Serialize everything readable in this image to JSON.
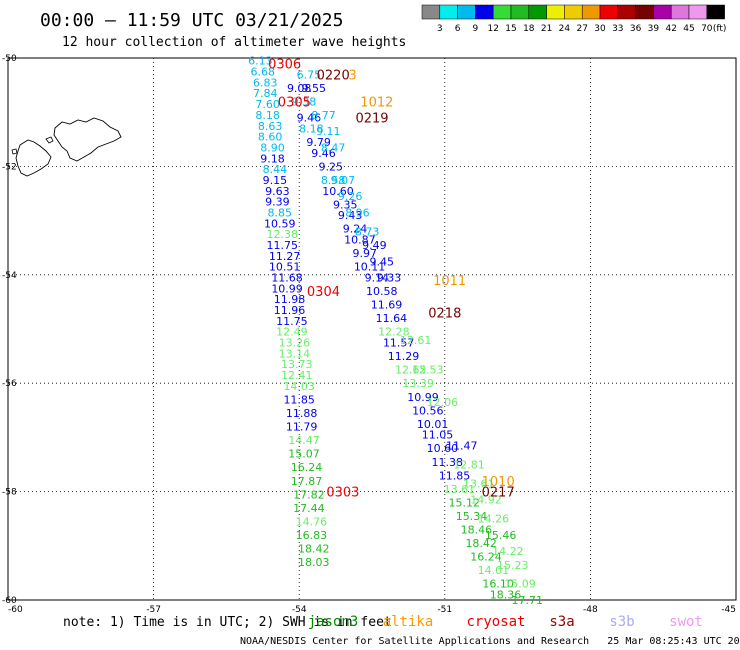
{
  "title": "00:00 – 11:59 UTC 03/21/2025",
  "subtitle": "12 hour collection of altimeter wave heights",
  "footer": "NOAA/NESDIS Center for Satellite Applications and Research   25 Mar 08:25:43 UTC 2025",
  "note": "note: 1) Time is in UTC; 2) SWH is in feet",
  "legend": {
    "labels": [
      "3",
      "6",
      "9",
      "12",
      "15",
      "18",
      "21",
      "24",
      "27",
      "30",
      "33",
      "36",
      "39",
      "42",
      "45",
      "70",
      "(ft)"
    ],
    "colors": [
      "#888888",
      "#00eeee",
      "#00bbee",
      "#0000ee",
      "#33dd33",
      "#22bb22",
      "#009900",
      "#eeee00",
      "#eecc00",
      "#ee9900",
      "#ee0000",
      "#aa0000",
      "#770000",
      "#aa00aa",
      "#dd77dd",
      "#ee99ee",
      "#000000"
    ]
  },
  "satellites": [
    {
      "name": "jason3",
      "label": "jason3",
      "color": "#008800"
    },
    {
      "name": "altika",
      "label": "altika",
      "color": "#ff9900"
    },
    {
      "name": "cryosat",
      "label": "cryosat",
      "color": "#ee0000"
    },
    {
      "name": "s3a",
      "label": "s3a",
      "color": "#990000"
    },
    {
      "name": "s3b",
      "label": "s3b",
      "color": "#aaaaee"
    },
    {
      "name": "swot",
      "label": "swot",
      "color": "#ee99ee"
    }
  ],
  "chart_data": {
    "type": "scatter",
    "title": "00:00 – 11:59 UTC 03/21/2025",
    "subtitle": "12 hour collection of altimeter wave heights",
    "xlim": [
      -60,
      -45
    ],
    "ylim": [
      -60,
      -50
    ],
    "x_ticks": [
      "-60",
      "-57",
      "-54",
      "-51",
      "-48",
      "-45"
    ],
    "y_ticks": [
      "-50",
      "-52",
      "-54",
      "-56",
      "-58",
      "-60"
    ],
    "grid": true,
    "pass_times": [
      {
        "label": "0306",
        "lon": -54.3,
        "lat": -50.1,
        "color": "#ee0000"
      },
      {
        "label": "0220",
        "lon": -53.3,
        "lat": -50.3,
        "color": "#770000"
      },
      {
        "label": "3",
        "lon": -52.9,
        "lat": -50.3,
        "color": "#ff9900"
      },
      {
        "label": "0305",
        "lon": -54.1,
        "lat": -50.8,
        "color": "#ee0000"
      },
      {
        "label": "1012",
        "lon": -52.4,
        "lat": -50.8,
        "color": "#ee9900"
      },
      {
        "label": "0219",
        "lon": -52.5,
        "lat": -51.1,
        "color": "#770000"
      },
      {
        "label": "0304",
        "lon": -53.5,
        "lat": -54.3,
        "color": "#ee0000"
      },
      {
        "label": "1011",
        "lon": -50.9,
        "lat": -54.1,
        "color": "#ee9900"
      },
      {
        "label": "0218",
        "lon": -51.0,
        "lat": -54.7,
        "color": "#770000"
      },
      {
        "label": "1010",
        "lon": -49.9,
        "lat": -57.8,
        "color": "#ee9900"
      },
      {
        "label": "0217",
        "lon": -49.9,
        "lat": -58.0,
        "color": "#770000"
      },
      {
        "label": "0303",
        "lon": -53.1,
        "lat": -58.0,
        "color": "#ee0000"
      }
    ],
    "series": [
      {
        "name": "track_west",
        "points": [
          {
            "lon": -54.8,
            "lat": -50.05,
            "v": "6.13",
            "color": "#00bbee"
          },
          {
            "lon": -54.75,
            "lat": -50.25,
            "v": "6.68",
            "color": "#00bbee"
          },
          {
            "lon": -54.7,
            "lat": -50.45,
            "v": "6.83",
            "color": "#00bbee"
          },
          {
            "lon": -54.7,
            "lat": -50.65,
            "v": "7.84",
            "color": "#00bbee"
          },
          {
            "lon": -54.65,
            "lat": -50.85,
            "v": "7.60",
            "color": "#00bbee"
          },
          {
            "lon": -54.65,
            "lat": -51.05,
            "v": "8.18",
            "color": "#00bbee"
          },
          {
            "lon": -54.6,
            "lat": -51.25,
            "v": "8.63",
            "color": "#00bbee"
          },
          {
            "lon": -54.6,
            "lat": -51.45,
            "v": "8.60",
            "color": "#00bbee"
          },
          {
            "lon": -54.55,
            "lat": -51.65,
            "v": "8.90",
            "color": "#00bbee"
          },
          {
            "lon": -54.55,
            "lat": -51.85,
            "v": "9.18",
            "color": "#0000ee"
          },
          {
            "lon": -54.5,
            "lat": -52.05,
            "v": "8.44",
            "color": "#00bbee"
          },
          {
            "lon": -54.5,
            "lat": -52.25,
            "v": "9.15",
            "color": "#0000ee"
          },
          {
            "lon": -54.45,
            "lat": -52.45,
            "v": "9.63",
            "color": "#0000ee"
          },
          {
            "lon": -54.45,
            "lat": -52.65,
            "v": "9.39",
            "color": "#0000ee"
          },
          {
            "lon": -54.4,
            "lat": -52.85,
            "v": "8.85",
            "color": "#00bbee"
          },
          {
            "lon": -54.4,
            "lat": -53.05,
            "v": "10.59",
            "color": "#0000ee"
          },
          {
            "lon": -54.35,
            "lat": -53.25,
            "v": "12.38",
            "color": "#66ee66"
          },
          {
            "lon": -54.35,
            "lat": -53.45,
            "v": "11.75",
            "color": "#0000ee"
          },
          {
            "lon": -54.3,
            "lat": -53.65,
            "v": "11.27",
            "color": "#0000ee"
          },
          {
            "lon": -54.3,
            "lat": -53.85,
            "v": "10.51",
            "color": "#0000ee"
          },
          {
            "lon": -54.25,
            "lat": -54.05,
            "v": "11.68",
            "color": "#0000ee"
          },
          {
            "lon": -54.25,
            "lat": -54.25,
            "v": "10.99",
            "color": "#0000ee"
          },
          {
            "lon": -54.2,
            "lat": -54.45,
            "v": "11.98",
            "color": "#0000ee"
          },
          {
            "lon": -54.2,
            "lat": -54.65,
            "v": "11.96",
            "color": "#0000ee"
          },
          {
            "lon": -54.15,
            "lat": -54.85,
            "v": "11.75",
            "color": "#0000ee"
          },
          {
            "lon": -54.15,
            "lat": -55.05,
            "v": "12.49",
            "color": "#66ee66"
          },
          {
            "lon": -54.1,
            "lat": -55.25,
            "v": "13.26",
            "color": "#66ee66"
          },
          {
            "lon": -54.1,
            "lat": -55.45,
            "v": "13.14",
            "color": "#66ee66"
          },
          {
            "lon": -54.05,
            "lat": -55.65,
            "v": "13.73",
            "color": "#66ee66"
          },
          {
            "lon": -54.05,
            "lat": -55.85,
            "v": "12.41",
            "color": "#66ee66"
          },
          {
            "lon": -54.0,
            "lat": -56.05,
            "v": "14.03",
            "color": "#66ee66"
          },
          {
            "lon": -54.0,
            "lat": -56.3,
            "v": "11.85",
            "color": "#0000ee"
          },
          {
            "lon": -53.95,
            "lat": -56.55,
            "v": "11.88",
            "color": "#0000ee"
          },
          {
            "lon": -53.95,
            "lat": -56.8,
            "v": "11.79",
            "color": "#0000ee"
          },
          {
            "lon": -53.9,
            "lat": -57.05,
            "v": "14.47",
            "color": "#66ee66"
          },
          {
            "lon": -53.9,
            "lat": -57.3,
            "v": "15.07",
            "color": "#22bb22"
          },
          {
            "lon": -53.85,
            "lat": -57.55,
            "v": "16.24",
            "color": "#22bb22"
          },
          {
            "lon": -53.85,
            "lat": -57.8,
            "v": "17.87",
            "color": "#22bb22"
          },
          {
            "lon": -53.8,
            "lat": -58.05,
            "v": "17.82",
            "color": "#22bb22"
          },
          {
            "lon": -53.8,
            "lat": -58.3,
            "v": "17.44",
            "color": "#22bb22"
          },
          {
            "lon": -53.75,
            "lat": -58.55,
            "v": "14.76",
            "color": "#66ee66"
          },
          {
            "lon": -53.75,
            "lat": -58.8,
            "v": "16.83",
            "color": "#22bb22"
          },
          {
            "lon": -53.7,
            "lat": -59.05,
            "v": "18.42",
            "color": "#22bb22"
          },
          {
            "lon": -53.7,
            "lat": -59.3,
            "v": "18.03",
            "color": "#22bb22"
          }
        ]
      },
      {
        "name": "track_middle",
        "points": [
          {
            "lon": -54.0,
            "lat": -50.55,
            "v": "9.08",
            "color": "#0000ee"
          },
          {
            "lon": -53.9,
            "lat": -50.8,
            "v": "9.38",
            "color": "#00bbee"
          },
          {
            "lon": -53.8,
            "lat": -51.1,
            "v": "9.46",
            "color": "#0000ee"
          },
          {
            "lon": -53.75,
            "lat": -51.3,
            "v": "8.18",
            "color": "#00bbee"
          },
          {
            "lon": -53.6,
            "lat": -51.55,
            "v": "9.79",
            "color": "#0000ee"
          },
          {
            "lon": -53.5,
            "lat": -51.75,
            "v": "9.46",
            "color": "#0000ee"
          },
          {
            "lon": -53.35,
            "lat": -52.0,
            "v": "9.25",
            "color": "#0000ee"
          },
          {
            "lon": -53.3,
            "lat": -52.25,
            "v": "8.58",
            "color": "#00bbee"
          },
          {
            "lon": -53.2,
            "lat": -52.45,
            "v": "10.60",
            "color": "#0000ee"
          },
          {
            "lon": -53.05,
            "lat": -52.7,
            "v": "9.35",
            "color": "#0000ee"
          },
          {
            "lon": -52.95,
            "lat": -52.9,
            "v": "9.43",
            "color": "#0000ee"
          },
          {
            "lon": -52.85,
            "lat": -53.15,
            "v": "9.24",
            "color": "#0000ee"
          },
          {
            "lon": -52.75,
            "lat": -53.35,
            "v": "10.87",
            "color": "#0000ee"
          },
          {
            "lon": -52.65,
            "lat": -53.6,
            "v": "9.97",
            "color": "#0000ee"
          },
          {
            "lon": -52.55,
            "lat": -53.85,
            "v": "10.11",
            "color": "#0000ee"
          },
          {
            "lon": -52.4,
            "lat": -54.05,
            "v": "9.14",
            "color": "#0000ee"
          },
          {
            "lon": -52.3,
            "lat": -54.3,
            "v": "10.58",
            "color": "#0000ee"
          },
          {
            "lon": -52.2,
            "lat": -54.55,
            "v": "11.69",
            "color": "#0000ee"
          },
          {
            "lon": -52.1,
            "lat": -54.8,
            "v": "11.64",
            "color": "#0000ee"
          },
          {
            "lon": -52.05,
            "lat": -55.05,
            "v": "12.28",
            "color": "#66ee66"
          },
          {
            "lon": -51.95,
            "lat": -55.25,
            "v": "11.57",
            "color": "#0000ee"
          },
          {
            "lon": -51.85,
            "lat": -55.5,
            "v": "11.29",
            "color": "#0000ee"
          },
          {
            "lon": -51.7,
            "lat": -55.75,
            "v": "12.65",
            "color": "#66ee66"
          },
          {
            "lon": -51.55,
            "lat": -56.0,
            "v": "13.39",
            "color": "#66ee66"
          },
          {
            "lon": -51.45,
            "lat": -56.25,
            "v": "10.99",
            "color": "#0000ee"
          },
          {
            "lon": -51.35,
            "lat": -56.5,
            "v": "10.56",
            "color": "#0000ee"
          },
          {
            "lon": -51.25,
            "lat": -56.75,
            "v": "10.01",
            "color": "#0000ee"
          },
          {
            "lon": -51.15,
            "lat": -56.95,
            "v": "11.05",
            "color": "#0000ee"
          },
          {
            "lon": -51.05,
            "lat": -57.2,
            "v": "10.60",
            "color": "#0000ee"
          },
          {
            "lon": -50.95,
            "lat": -57.45,
            "v": "11.38",
            "color": "#0000ee"
          },
          {
            "lon": -50.8,
            "lat": -57.7,
            "v": "11.85",
            "color": "#0000ee"
          },
          {
            "lon": -50.7,
            "lat": -57.95,
            "v": "13.61",
            "color": "#66ee66"
          },
          {
            "lon": -50.6,
            "lat": -58.2,
            "v": "15.12",
            "color": "#22bb22"
          },
          {
            "lon": -50.45,
            "lat": -58.45,
            "v": "15.34",
            "color": "#22bb22"
          },
          {
            "lon": -50.35,
            "lat": -58.7,
            "v": "18.46",
            "color": "#22bb22"
          },
          {
            "lon": -50.25,
            "lat": -58.95,
            "v": "18.42",
            "color": "#22bb22"
          },
          {
            "lon": -50.15,
            "lat": -59.2,
            "v": "16.24",
            "color": "#22bb22"
          },
          {
            "lon": -50.0,
            "lat": -59.45,
            "v": "14.01",
            "color": "#66ee66"
          },
          {
            "lon": -49.9,
            "lat": -59.7,
            "v": "16.10",
            "color": "#22bb22"
          },
          {
            "lon": -49.75,
            "lat": -59.9,
            "v": "18.36",
            "color": "#22bb22"
          }
        ]
      },
      {
        "name": "track_east",
        "points": [
          {
            "lon": -53.8,
            "lat": -50.3,
            "v": "6.75",
            "color": "#00bbee"
          },
          {
            "lon": -53.7,
            "lat": -50.55,
            "v": "9.55",
            "color": "#0000ee"
          },
          {
            "lon": -53.5,
            "lat": -51.05,
            "v": "8.77",
            "color": "#00bbee"
          },
          {
            "lon": -53.4,
            "lat": -51.35,
            "v": "9.11",
            "color": "#00bbee"
          },
          {
            "lon": -53.3,
            "lat": -51.65,
            "v": "8.47",
            "color": "#00bbee"
          },
          {
            "lon": -53.1,
            "lat": -52.25,
            "v": "9.07",
            "color": "#00bbee"
          },
          {
            "lon": -52.95,
            "lat": -52.55,
            "v": "9.26",
            "color": "#00bbee"
          },
          {
            "lon": -52.8,
            "lat": -52.85,
            "v": "8.96",
            "color": "#00bbee"
          },
          {
            "lon": -52.6,
            "lat": -53.2,
            "v": "8.73",
            "color": "#00bbee"
          },
          {
            "lon": -52.45,
            "lat": -53.45,
            "v": "9.49",
            "color": "#0000ee"
          },
          {
            "lon": -52.3,
            "lat": -53.75,
            "v": "9.45",
            "color": "#0000ee"
          },
          {
            "lon": -52.15,
            "lat": -54.05,
            "v": "9.33",
            "color": "#0000ee"
          },
          {
            "lon": -51.6,
            "lat": -55.2,
            "v": "12.61",
            "color": "#66ee66"
          },
          {
            "lon": -51.35,
            "lat": -55.75,
            "v": "12.53",
            "color": "#66ee66"
          },
          {
            "lon": -51.05,
            "lat": -56.35,
            "v": "12.06",
            "color": "#66ee66"
          },
          {
            "lon": -50.65,
            "lat": -57.15,
            "v": "11.47",
            "color": "#0000ee"
          },
          {
            "lon": -50.5,
            "lat": -57.5,
            "v": "12.81",
            "color": "#66ee66"
          },
          {
            "lon": -50.3,
            "lat": -57.85,
            "v": "13.61",
            "color": "#66ee66"
          },
          {
            "lon": -50.15,
            "lat": -58.15,
            "v": "14.92",
            "color": "#66ee66"
          },
          {
            "lon": -50.0,
            "lat": -58.5,
            "v": "14.26",
            "color": "#66ee66"
          },
          {
            "lon": -49.85,
            "lat": -58.8,
            "v": "15.46",
            "color": "#22bb22"
          },
          {
            "lon": -49.7,
            "lat": -59.1,
            "v": "14.22",
            "color": "#66ee66"
          },
          {
            "lon": -49.6,
            "lat": -59.35,
            "v": "15.23",
            "color": "#66ee66"
          },
          {
            "lon": -49.45,
            "lat": -59.7,
            "v": "15.09",
            "color": "#66ee66"
          },
          {
            "lon": -49.3,
            "lat": -60.0,
            "v": "17.71",
            "color": "#22bb22"
          }
        ]
      }
    ]
  }
}
